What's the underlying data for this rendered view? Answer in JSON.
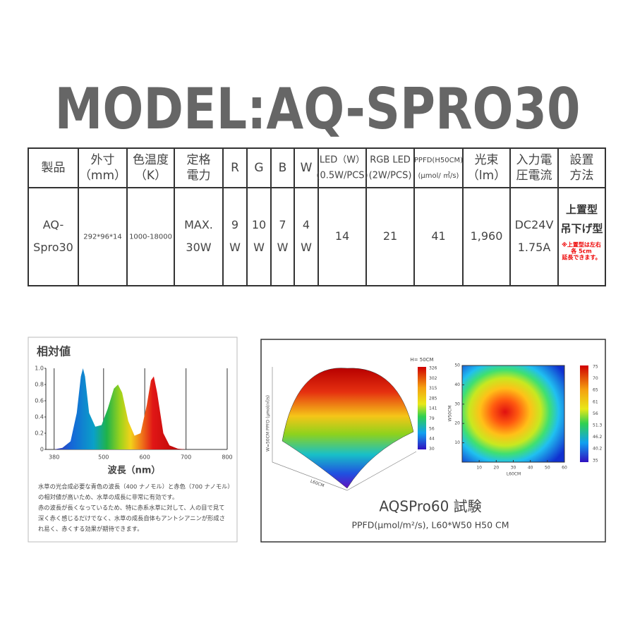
{
  "title": "MODEL:AQ-SPRO30",
  "table": {
    "header": [
      [
        "製品"
      ],
      [
        "外寸",
        "（mm）"
      ],
      [
        "色温度",
        "（K）"
      ],
      [
        "定格",
        "電力"
      ],
      [
        "R"
      ],
      [
        "G"
      ],
      [
        "B"
      ],
      [
        "W"
      ],
      [
        "LED（W）",
        "(0.5W/PCS)"
      ],
      [
        "RGB LED",
        "(2W/PCS)"
      ],
      [
        "PPFD(H50CM)",
        "(μmol/ ㎡/s)"
      ],
      [
        "光束",
        "（lm）"
      ],
      [
        "入力電",
        "圧電流"
      ],
      [
        "設置",
        "方法"
      ]
    ],
    "rows": [
      [
        [
          "AQ-",
          "Spro30"
        ],
        [
          "292*96*14"
        ],
        [
          "1000-18000"
        ],
        [
          "MAX.",
          "30W"
        ],
        [
          "9",
          "W"
        ],
        [
          "10",
          "W"
        ],
        [
          "7",
          "W"
        ],
        [
          "4",
          "W"
        ],
        [
          "14"
        ],
        [
          "21"
        ],
        [
          "41"
        ],
        [
          "1,960"
        ],
        [
          "DC24V",
          "1.75A"
        ],
        [
          "上置型",
          "吊下げ型"
        ]
      ]
    ],
    "note": [
      "※上置型は左右",
      "各 5cm",
      "延長できます。"
    ]
  },
  "spectrum": {
    "title": "相対値",
    "x_label": "波長（nm）",
    "xlim": [
      360,
      800
    ],
    "xticks": [
      380,
      500,
      600,
      700,
      800
    ],
    "ylim": [
      0,
      1
    ],
    "yticks": [
      0,
      0.2,
      0.4,
      0.6,
      0.8,
      {
        "value": 1,
        "label": "1.0"
      }
    ],
    "x": [
      380,
      400,
      420,
      435,
      445,
      450,
      455,
      465,
      480,
      495,
      510,
      525,
      535,
      545,
      560,
      575,
      590,
      605,
      615,
      622,
      630,
      645,
      660,
      680,
      700
    ],
    "values": [
      0,
      0.02,
      0.1,
      0.45,
      0.9,
      1.0,
      0.9,
      0.45,
      0.28,
      0.3,
      0.5,
      0.75,
      0.8,
      0.7,
      0.35,
      0.17,
      0.2,
      0.55,
      0.85,
      0.9,
      0.7,
      0.2,
      0.05,
      0.01,
      0
    ],
    "description": [
      "水草の光合成必要な青色の波長（400 ナノモル）と赤色（700 ナノモル）",
      "の相対値が高いため、水草の成長に非常に有効です。",
      "赤の波長が長くなっているため、特に赤系水草に対して、人の目で見て",
      "深く赤く感じるだけでなく、水草の成長自体もアントシアニンが形成さ",
      "れ易く、赤くする効果が期待できます。"
    ]
  },
  "ppfd": {
    "caption": "AQSPro60 試験",
    "subtitle": "PPFD(μmol/m²/s), L60*W50 H50 CM",
    "surface": {
      "label": "H= 50CM",
      "x_label": "L60CM",
      "y_label": "W=50CM  PPFD (μmol/㎡/s)",
      "colorbar": [
        326,
        302,
        315,
        285,
        141,
        79,
        56,
        44,
        30
      ]
    },
    "heatmap": {
      "x_label": "L60CM",
      "y_label": "W50CM",
      "xlim": [
        0,
        60
      ],
      "xticks": [
        10,
        20,
        30,
        40,
        50,
        60
      ],
      "ylim": [
        0,
        50
      ],
      "yticks": [
        10,
        20,
        30,
        40,
        50
      ],
      "colorbar": [
        75,
        70,
        65,
        61,
        56,
        51.3,
        46.2,
        40.2,
        35
      ]
    }
  }
}
